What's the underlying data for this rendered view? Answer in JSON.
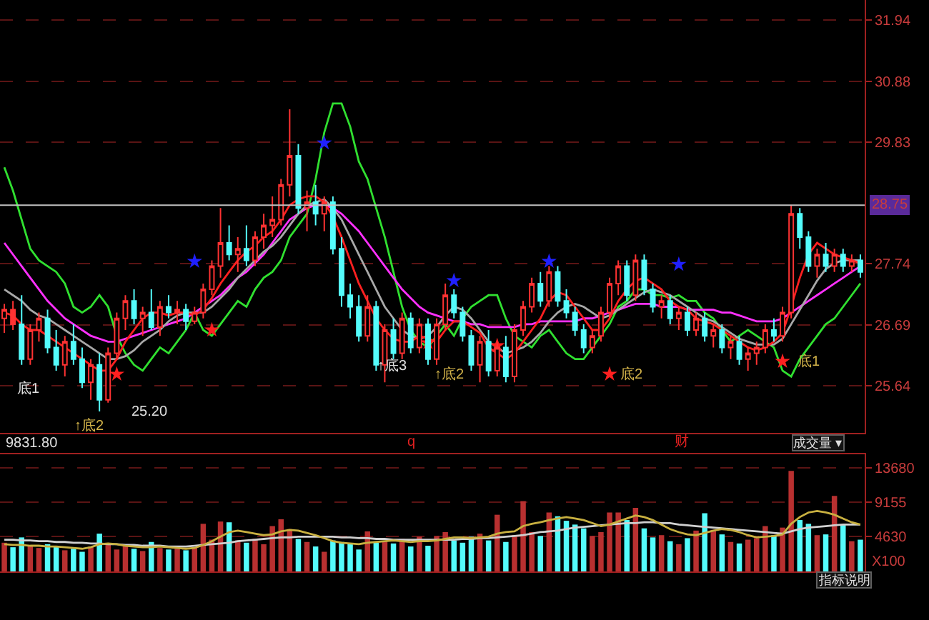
{
  "chart_data": [
    {
      "type": "candlestick",
      "categories": [
        null,
        null,
        null,
        null,
        null,
        null,
        null,
        null,
        null,
        null,
        null,
        null,
        null,
        null,
        null,
        null,
        null,
        null,
        null,
        null,
        null,
        null,
        null,
        null,
        null,
        null,
        null,
        null,
        null,
        null,
        null,
        null,
        null,
        null,
        null,
        null,
        null,
        null,
        null,
        null,
        null,
        null,
        null,
        null,
        null,
        null,
        null,
        null,
        null,
        null,
        null,
        null,
        null,
        null,
        null,
        null,
        null,
        null,
        null,
        null,
        null,
        null,
        null,
        null,
        null,
        null,
        null,
        null,
        null,
        null,
        null,
        null,
        null,
        null,
        null,
        null,
        null,
        null,
        null,
        null,
        null,
        null,
        null,
        null,
        null,
        null,
        null,
        null,
        null,
        null,
        null,
        null,
        null,
        null,
        null,
        null,
        null,
        null,
        null,
        null
      ],
      "ohlc": [
        [
          26.8,
          27.05,
          26.55,
          26.95
        ],
        [
          26.95,
          27.1,
          26.6,
          26.7
        ],
        [
          26.7,
          27.2,
          26.0,
          26.1
        ],
        [
          26.1,
          26.7,
          26.0,
          26.6
        ],
        [
          26.6,
          26.9,
          26.4,
          26.8
        ],
        [
          26.8,
          26.95,
          26.2,
          26.3
        ],
        [
          26.3,
          26.6,
          25.9,
          26.0
        ],
        [
          26.0,
          26.5,
          25.8,
          26.4
        ],
        [
          26.4,
          26.7,
          26.0,
          26.1
        ],
        [
          26.1,
          26.3,
          25.6,
          25.7
        ],
        [
          25.7,
          26.1,
          25.4,
          26.0
        ],
        [
          26.0,
          26.2,
          25.2,
          25.4
        ],
        [
          25.4,
          26.3,
          25.35,
          26.2
        ],
        [
          26.2,
          26.9,
          26.1,
          26.8
        ],
        [
          26.8,
          27.2,
          26.6,
          27.1
        ],
        [
          27.1,
          27.3,
          26.7,
          26.8
        ],
        [
          26.8,
          27.0,
          26.5,
          26.9
        ],
        [
          26.9,
          27.3,
          26.6,
          26.65
        ],
        [
          26.65,
          27.1,
          26.5,
          27.0
        ],
        [
          27.0,
          27.2,
          26.8,
          26.9
        ],
        [
          26.9,
          27.1,
          26.7,
          26.95
        ],
        [
          26.95,
          27.05,
          26.6,
          26.75
        ],
        [
          26.75,
          27.0,
          26.7,
          26.9
        ],
        [
          26.9,
          27.4,
          26.8,
          27.3
        ],
        [
          27.3,
          27.8,
          27.2,
          27.7
        ],
        [
          27.7,
          28.7,
          27.5,
          28.1
        ],
        [
          28.1,
          28.4,
          27.8,
          27.9
        ],
        [
          27.9,
          28.2,
          27.6,
          28.0
        ],
        [
          28.0,
          28.4,
          27.7,
          27.8
        ],
        [
          27.8,
          28.3,
          27.7,
          28.2
        ],
        [
          28.2,
          28.6,
          28.0,
          28.4
        ],
        [
          28.4,
          28.9,
          28.2,
          28.5
        ],
        [
          28.5,
          29.2,
          28.4,
          29.1
        ],
        [
          29.1,
          30.4,
          28.9,
          29.6
        ],
        [
          29.6,
          29.8,
          28.6,
          28.7
        ],
        [
          28.7,
          29.0,
          28.3,
          28.8
        ],
        [
          28.8,
          29.1,
          28.4,
          28.6
        ],
        [
          28.6,
          28.9,
          28.3,
          28.8
        ],
        [
          28.8,
          28.9,
          27.9,
          28.0
        ],
        [
          28.0,
          28.2,
          27.0,
          27.2
        ],
        [
          27.2,
          27.4,
          26.8,
          27.0
        ],
        [
          27.0,
          27.2,
          26.4,
          26.5
        ],
        [
          26.5,
          27.2,
          26.4,
          27.0
        ],
        [
          27.0,
          27.1,
          25.9,
          26.0
        ],
        [
          26.0,
          26.7,
          25.7,
          26.6
        ],
        [
          26.6,
          26.8,
          26.1,
          26.2
        ],
        [
          26.2,
          26.9,
          26.1,
          26.8
        ],
        [
          26.8,
          26.9,
          26.2,
          26.3
        ],
        [
          26.3,
          26.8,
          26.2,
          26.7
        ],
        [
          26.7,
          26.8,
          26.0,
          26.1
        ],
        [
          26.1,
          26.8,
          26.0,
          26.7
        ],
        [
          26.7,
          27.4,
          26.6,
          27.2
        ],
        [
          27.2,
          27.3,
          26.8,
          26.9
        ],
        [
          26.9,
          27.0,
          26.4,
          26.5
        ],
        [
          26.5,
          26.6,
          25.9,
          26.0
        ],
        [
          26.0,
          26.5,
          25.7,
          26.4
        ],
        [
          26.4,
          26.6,
          25.8,
          25.9
        ],
        [
          25.9,
          26.4,
          25.8,
          26.3
        ],
        [
          26.3,
          26.5,
          25.7,
          25.8
        ],
        [
          25.8,
          26.7,
          25.7,
          26.6
        ],
        [
          26.6,
          27.1,
          26.5,
          27.0
        ],
        [
          27.0,
          27.5,
          26.9,
          27.4
        ],
        [
          27.4,
          27.6,
          27.0,
          27.1
        ],
        [
          27.1,
          27.7,
          27.0,
          27.6
        ],
        [
          27.6,
          27.7,
          27.0,
          27.1
        ],
        [
          27.1,
          27.3,
          26.8,
          26.9
        ],
        [
          26.9,
          27.0,
          26.5,
          26.6
        ],
        [
          26.6,
          26.7,
          26.2,
          26.3
        ],
        [
          26.3,
          26.6,
          26.2,
          26.5
        ],
        [
          26.5,
          27.0,
          26.4,
          26.9
        ],
        [
          26.9,
          27.5,
          26.8,
          27.4
        ],
        [
          27.4,
          27.8,
          27.2,
          27.7
        ],
        [
          27.7,
          27.8,
          27.1,
          27.2
        ],
        [
          27.2,
          27.9,
          27.1,
          27.8
        ],
        [
          27.8,
          27.9,
          27.2,
          27.3
        ],
        [
          27.3,
          27.4,
          26.9,
          27.0
        ],
        [
          27.0,
          27.2,
          26.8,
          27.1
        ],
        [
          27.1,
          27.2,
          26.7,
          26.8
        ],
        [
          26.8,
          27.0,
          26.6,
          26.9
        ],
        [
          26.9,
          27.0,
          26.5,
          26.6
        ],
        [
          26.6,
          26.9,
          26.5,
          26.8
        ],
        [
          26.8,
          26.9,
          26.4,
          26.5
        ],
        [
          26.5,
          26.7,
          26.3,
          26.6
        ],
        [
          26.6,
          26.7,
          26.2,
          26.3
        ],
        [
          26.3,
          26.5,
          26.1,
          26.4
        ],
        [
          26.4,
          26.5,
          26.0,
          26.1
        ],
        [
          26.1,
          26.3,
          25.9,
          26.2
        ],
        [
          26.2,
          26.4,
          26.0,
          26.3
        ],
        [
          26.3,
          26.7,
          26.2,
          26.6
        ],
        [
          26.6,
          26.8,
          26.4,
          26.5
        ],
        [
          26.5,
          27.0,
          26.4,
          26.9
        ],
        [
          26.9,
          28.75,
          26.8,
          28.6
        ],
        [
          28.6,
          28.7,
          28.0,
          28.2
        ],
        [
          28.2,
          28.3,
          27.6,
          27.7
        ],
        [
          27.7,
          28.0,
          27.5,
          27.9
        ],
        [
          27.9,
          28.1,
          27.6,
          27.7
        ],
        [
          27.7,
          28.0,
          27.6,
          27.9
        ],
        [
          27.9,
          28.0,
          27.6,
          27.7
        ],
        [
          27.7,
          27.9,
          27.6,
          27.8
        ],
        [
          27.8,
          27.9,
          27.5,
          27.6
        ]
      ],
      "colors": [
        "#ff3232",
        "#ff3232",
        "#54fcfc",
        "#ff3232",
        "#ff3232",
        "#54fcfc",
        "#54fcfc",
        "#ff3232",
        "#54fcfc",
        "#54fcfc",
        "#ff3232",
        "#54fcfc",
        "#ff3232",
        "#ff3232",
        "#ff3232",
        "#54fcfc",
        "#ff3232",
        "#54fcfc",
        "#ff3232",
        "#54fcfc",
        "#ff3232",
        "#54fcfc",
        "#ff3232",
        "#ff3232",
        "#ff3232",
        "#ff3232",
        "#54fcfc",
        "#ff3232",
        "#54fcfc",
        "#ff3232",
        "#ff3232",
        "#ff3232",
        "#ff3232",
        "#ff3232",
        "#54fcfc",
        "#ff3232",
        "#54fcfc",
        "#ff3232",
        "#54fcfc",
        "#54fcfc",
        "#54fcfc",
        "#54fcfc",
        "#ff3232",
        "#54fcfc",
        "#ff3232",
        "#54fcfc",
        "#ff3232",
        "#54fcfc",
        "#ff3232",
        "#54fcfc",
        "#ff3232",
        "#ff3232",
        "#54fcfc",
        "#54fcfc",
        "#54fcfc",
        "#ff3232",
        "#54fcfc",
        "#ff3232",
        "#54fcfc",
        "#ff3232",
        "#ff3232",
        "#ff3232",
        "#54fcfc",
        "#ff3232",
        "#54fcfc",
        "#54fcfc",
        "#54fcfc",
        "#54fcfc",
        "#ff3232",
        "#ff3232",
        "#ff3232",
        "#ff3232",
        "#54fcfc",
        "#ff3232",
        "#54fcfc",
        "#54fcfc",
        "#ff3232",
        "#54fcfc",
        "#ff3232",
        "#54fcfc",
        "#ff3232",
        "#54fcfc",
        "#ff3232",
        "#54fcfc",
        "#ff3232",
        "#54fcfc",
        "#ff3232",
        "#ff3232",
        "#ff3232",
        "#54fcfc",
        "#ff3232",
        "#ff3232",
        "#54fcfc",
        "#54fcfc",
        "#ff3232",
        "#54fcfc",
        "#ff3232",
        "#54fcfc",
        "#ff3232",
        "#54fcfc"
      ],
      "series": [
        {
          "type": "line",
          "color": "#30e030",
          "values": [
            29.4,
            29.0,
            28.5,
            28.0,
            27.8,
            27.7,
            27.6,
            27.4,
            27.0,
            26.9,
            27.0,
            27.2,
            27.0,
            26.5,
            26.2,
            26.0,
            25.9,
            26.1,
            26.3,
            26.2,
            26.4,
            26.6,
            26.9,
            26.6,
            26.5,
            26.7,
            26.9,
            27.1,
            27.0,
            27.3,
            27.5,
            27.6,
            27.8,
            28.2,
            28.4,
            28.6,
            29.2,
            30.0,
            30.5,
            30.5,
            30.1,
            29.5,
            29.2,
            28.7,
            28.2,
            27.6,
            27.0,
            26.6,
            26.4,
            26.3,
            26.5,
            26.7,
            26.5,
            26.8,
            27.0,
            27.1,
            27.2,
            27.2,
            26.8,
            26.5,
            26.4,
            26.3,
            26.5,
            26.6,
            26.4,
            26.2,
            26.1,
            26.1,
            26.3,
            26.5,
            26.7,
            27.0,
            27.1,
            27.3,
            27.3,
            27.2,
            27.2,
            27.15,
            27.2,
            27.1,
            27.1,
            26.9,
            26.8,
            26.6,
            26.4,
            26.5,
            26.6,
            26.5,
            26.4,
            26.3,
            25.9,
            25.8,
            26.1,
            26.3,
            26.5,
            26.7,
            26.8,
            27.0,
            27.2,
            27.4
          ]
        },
        {
          "type": "line",
          "color": "#ff30ff",
          "values": [
            28.1,
            27.9,
            27.7,
            27.5,
            27.3,
            27.1,
            26.95,
            26.8,
            26.7,
            26.6,
            26.5,
            26.45,
            26.4,
            26.4,
            26.45,
            26.5,
            26.55,
            26.6,
            26.65,
            26.7,
            26.75,
            26.8,
            26.9,
            27.0,
            27.1,
            27.2,
            27.35,
            27.5,
            27.6,
            27.75,
            27.9,
            28.1,
            28.3,
            28.5,
            28.6,
            28.7,
            28.75,
            28.75,
            28.7,
            28.6,
            28.45,
            28.3,
            28.1,
            27.9,
            27.7,
            27.5,
            27.3,
            27.15,
            27.0,
            26.9,
            26.85,
            26.8,
            26.75,
            26.75,
            26.7,
            26.7,
            26.65,
            26.65,
            26.65,
            26.65,
            26.7,
            26.7,
            26.75,
            26.75,
            26.75,
            26.75,
            26.75,
            26.8,
            26.8,
            26.85,
            26.9,
            26.95,
            27.0,
            27.05,
            27.05,
            27.05,
            27.0,
            27.0,
            27.0,
            26.95,
            26.95,
            26.95,
            26.95,
            26.9,
            26.9,
            26.85,
            26.8,
            26.75,
            26.75,
            26.75,
            26.8,
            26.9,
            27.0,
            27.1,
            27.2,
            27.3,
            27.4,
            27.5,
            27.6,
            27.7
          ]
        },
        {
          "type": "line",
          "color": "#a8a8a8",
          "values": [
            27.3,
            27.2,
            27.1,
            26.95,
            26.85,
            26.8,
            26.7,
            26.6,
            26.5,
            26.4,
            26.3,
            26.2,
            26.1,
            26.1,
            26.15,
            26.25,
            26.4,
            26.5,
            26.6,
            26.75,
            26.85,
            26.9,
            26.9,
            26.9,
            27.0,
            27.15,
            27.3,
            27.5,
            27.65,
            27.8,
            27.95,
            28.05,
            28.2,
            28.4,
            28.6,
            28.75,
            28.8,
            28.85,
            28.7,
            28.5,
            28.2,
            27.9,
            27.6,
            27.3,
            27.0,
            26.8,
            26.6,
            26.5,
            26.45,
            26.5,
            26.65,
            26.85,
            27.0,
            26.95,
            26.8,
            26.6,
            26.4,
            26.3,
            26.2,
            26.25,
            26.3,
            26.4,
            26.55,
            26.75,
            26.9,
            27.0,
            27.05,
            27.0,
            26.9,
            26.8,
            26.85,
            26.95,
            27.05,
            27.15,
            27.25,
            27.3,
            27.25,
            27.2,
            27.1,
            27.0,
            26.9,
            26.8,
            26.75,
            26.65,
            26.55,
            26.45,
            26.4,
            26.35,
            26.35,
            26.35,
            26.45,
            26.7,
            26.95,
            27.2,
            27.45,
            27.65,
            27.75,
            27.8,
            27.8,
            27.8
          ]
        },
        {
          "type": "line",
          "color": "#ff2020",
          "values": [
            26.9,
            26.85,
            26.7,
            26.6,
            26.6,
            26.5,
            26.4,
            26.3,
            26.2,
            26.1,
            26.0,
            25.9,
            25.9,
            26.1,
            26.4,
            26.6,
            26.8,
            26.9,
            26.9,
            26.85,
            26.9,
            26.9,
            26.85,
            26.95,
            27.15,
            27.4,
            27.6,
            27.8,
            27.95,
            28.05,
            28.2,
            28.3,
            28.5,
            28.75,
            28.85,
            28.9,
            28.9,
            28.8,
            28.55,
            28.2,
            27.8,
            27.4,
            27.1,
            26.8,
            26.6,
            26.45,
            26.4,
            26.4,
            26.5,
            26.45,
            26.4,
            26.6,
            26.75,
            26.75,
            26.65,
            26.55,
            26.3,
            26.2,
            26.1,
            26.2,
            26.4,
            26.6,
            26.8,
            27.1,
            27.25,
            27.2,
            27.0,
            26.8,
            26.6,
            26.6,
            26.8,
            27.1,
            27.3,
            27.45,
            27.5,
            27.4,
            27.3,
            27.1,
            27.0,
            26.95,
            26.8,
            26.75,
            26.7,
            26.6,
            26.5,
            26.4,
            26.3,
            26.25,
            26.3,
            26.4,
            26.55,
            27.0,
            27.5,
            27.9,
            28.1,
            28.0,
            27.9,
            27.85,
            27.8,
            27.75
          ]
        },
        {
          "type": "scatter",
          "marker": "star",
          "color": "#2020ff",
          "values": [
            null,
            null,
            null,
            null,
            null,
            null,
            null,
            null,
            null,
            null,
            null,
            null,
            null,
            null,
            null,
            null,
            null,
            null,
            null,
            null,
            null,
            null,
            27.78,
            null,
            null,
            null,
            null,
            null,
            null,
            null,
            null,
            null,
            null,
            null,
            null,
            null,
            null,
            29.82,
            null,
            null,
            null,
            null,
            null,
            null,
            null,
            null,
            null,
            null,
            null,
            null,
            null,
            null,
            27.45,
            null,
            null,
            null,
            null,
            null,
            null,
            null,
            null,
            null,
            null,
            27.78,
            null,
            null,
            null,
            null,
            null,
            null,
            null,
            null,
            null,
            null,
            null,
            null,
            null,
            null,
            27.73,
            null,
            null,
            null,
            null,
            null,
            null,
            null,
            null,
            null,
            null,
            null,
            null,
            null,
            null,
            null,
            null,
            null,
            null,
            null,
            null,
            null
          ]
        },
        {
          "type": "scatter",
          "marker": "star",
          "color": "#ff2020",
          "values": [
            null,
            null,
            null,
            null,
            null,
            null,
            null,
            null,
            null,
            null,
            null,
            null,
            null,
            25.84,
            null,
            null,
            null,
            null,
            null,
            null,
            null,
            null,
            null,
            null,
            26.6,
            null,
            null,
            null,
            null,
            null,
            null,
            null,
            null,
            null,
            null,
            null,
            null,
            null,
            null,
            null,
            null,
            null,
            null,
            null,
            null,
            null,
            null,
            null,
            null,
            26.38,
            null,
            null,
            null,
            null,
            null,
            null,
            null,
            26.33,
            null,
            null,
            null,
            null,
            null,
            null,
            null,
            null,
            null,
            null,
            null,
            null,
            25.84,
            null,
            null,
            null,
            null,
            null,
            null,
            null,
            null,
            null,
            null,
            null,
            null,
            null,
            null,
            null,
            null,
            null,
            null,
            null,
            26.06,
            null,
            null,
            null,
            null,
            null,
            null,
            null,
            null,
            null
          ]
        }
      ],
      "ylim": [
        24.83,
        32.28
      ],
      "yticks": [
        25.64,
        26.69,
        27.74,
        29.83,
        30.88,
        31.94
      ],
      "grid": "y",
      "ref_lines": [
        {
          "axis": "y",
          "value": 28.75,
          "label": "28.75",
          "color": "#c0c0c0"
        }
      ],
      "annotations": [
        "底1",
        "↑底2",
        "25.20",
        "↑底3",
        "↑底2",
        "底2",
        "底1",
        "q",
        "财"
      ]
    },
    {
      "type": "bar",
      "categories": [
        null,
        null,
        null,
        null,
        null,
        null,
        null,
        null,
        null,
        null,
        null,
        null,
        null,
        null,
        null,
        null,
        null,
        null,
        null,
        null,
        null,
        null,
        null,
        null,
        null,
        null,
        null,
        null,
        null,
        null,
        null,
        null,
        null,
        null,
        null,
        null,
        null,
        null,
        null,
        null,
        null,
        null,
        null,
        null,
        null,
        null,
        null,
        null,
        null,
        null,
        null,
        null,
        null,
        null,
        null,
        null,
        null,
        null,
        null,
        null,
        null,
        null,
        null,
        null,
        null,
        null,
        null,
        null,
        null,
        null,
        null,
        null,
        null,
        null,
        null,
        null,
        null,
        null,
        null,
        null,
        null,
        null,
        null,
        null,
        null,
        null,
        null,
        null,
        null,
        null,
        null,
        null,
        null,
        null,
        null,
        null,
        null,
        null,
        null,
        null
      ],
      "series": [
        {
          "type": "bar",
          "values": [
            3800,
            3200,
            4500,
            3400,
            3100,
            3600,
            3300,
            2800,
            3000,
            2600,
            3300,
            5000,
            3500,
            2900,
            3400,
            3000,
            2700,
            3900,
            3100,
            2900,
            3000,
            2800,
            3200,
            6300,
            4200,
            6600,
            6500,
            4100,
            3800,
            4300,
            3600,
            6000,
            6900,
            5600,
            4300,
            3900,
            3300,
            2600,
            4100,
            3900,
            3600,
            2900,
            5300,
            3800,
            4000,
            3700,
            4300,
            3300,
            4600,
            3400,
            4700,
            5200,
            4100,
            3800,
            4600,
            5000,
            4100,
            7500,
            3900,
            4800,
            9300,
            5200,
            4700,
            7800,
            7300,
            6700,
            6200,
            5700,
            4700,
            5200,
            7800,
            7800,
            6800,
            8400,
            5700,
            4500,
            4800,
            4000,
            3600,
            4400,
            5400,
            7700,
            5500,
            4900,
            3900,
            3700,
            4200,
            4400,
            6000,
            4800,
            5800,
            13300,
            6800,
            6300,
            4800,
            4900,
            10000,
            6200,
            4000,
            4200
          ],
          "colors": [
            "#b83030",
            "#54fcfc",
            "#54fcfc",
            "#b83030",
            "#b83030",
            "#54fcfc",
            "#54fcfc",
            "#b83030",
            "#54fcfc",
            "#54fcfc",
            "#b83030",
            "#54fcfc",
            "#b83030",
            "#b83030",
            "#b83030",
            "#54fcfc",
            "#b83030",
            "#54fcfc",
            "#b83030",
            "#54fcfc",
            "#b83030",
            "#54fcfc",
            "#b83030",
            "#b83030",
            "#b83030",
            "#b83030",
            "#54fcfc",
            "#b83030",
            "#54fcfc",
            "#b83030",
            "#b83030",
            "#b83030",
            "#b83030",
            "#b83030",
            "#54fcfc",
            "#b83030",
            "#54fcfc",
            "#b83030",
            "#54fcfc",
            "#54fcfc",
            "#54fcfc",
            "#54fcfc",
            "#b83030",
            "#54fcfc",
            "#b83030",
            "#54fcfc",
            "#b83030",
            "#54fcfc",
            "#b83030",
            "#54fcfc",
            "#b83030",
            "#b83030",
            "#54fcfc",
            "#54fcfc",
            "#54fcfc",
            "#b83030",
            "#54fcfc",
            "#b83030",
            "#54fcfc",
            "#b83030",
            "#b83030",
            "#b83030",
            "#54fcfc",
            "#b83030",
            "#54fcfc",
            "#54fcfc",
            "#54fcfc",
            "#54fcfc",
            "#b83030",
            "#b83030",
            "#b83030",
            "#b83030",
            "#54fcfc",
            "#b83030",
            "#54fcfc",
            "#54fcfc",
            "#b83030",
            "#54fcfc",
            "#b83030",
            "#54fcfc",
            "#b83030",
            "#54fcfc",
            "#b83030",
            "#54fcfc",
            "#b83030",
            "#54fcfc",
            "#b83030",
            "#b83030",
            "#b83030",
            "#54fcfc",
            "#b83030",
            "#b83030",
            "#54fcfc",
            "#54fcfc",
            "#b83030",
            "#54fcfc",
            "#b83030",
            "#54fcfc",
            "#b83030",
            "#54fcfc"
          ]
        },
        {
          "type": "line",
          "color": "#d0d0d0",
          "values": [
            4200,
            4200,
            4100,
            4100,
            4000,
            4000,
            3900,
            3900,
            3800,
            3800,
            3700,
            3700,
            3600,
            3600,
            3500,
            3500,
            3400,
            3400,
            3400,
            3300,
            3300,
            3300,
            3400,
            3500,
            3600,
            3700,
            3800,
            4000,
            4100,
            4200,
            4300,
            4400,
            4500,
            4500,
            4600,
            4600,
            4600,
            4600,
            4600,
            4500,
            4500,
            4400,
            4400,
            4300,
            4300,
            4200,
            4200,
            4200,
            4200,
            4200,
            4200,
            4200,
            4200,
            4300,
            4300,
            4400,
            4400,
            4500,
            4600,
            4700,
            4800,
            5000,
            5200,
            5300,
            5400,
            5600,
            5800,
            5900,
            6000,
            6100,
            6200,
            6300,
            6400,
            6400,
            6500,
            6500,
            6400,
            6400,
            6200,
            6100,
            6000,
            5900,
            5800,
            5700,
            5600,
            5500,
            5400,
            5300,
            5200,
            5100,
            5000,
            5300,
            5600,
            5800,
            5900,
            6000,
            6100,
            6200,
            6200,
            6200
          ]
        },
        {
          "type": "line",
          "color": "#c8b040",
          "values": [
            3600,
            3500,
            3500,
            3400,
            3400,
            3300,
            3300,
            3200,
            3100,
            3000,
            3200,
            3600,
            3700,
            3600,
            3400,
            3300,
            3200,
            3200,
            3300,
            3200,
            3100,
            3000,
            3100,
            3500,
            4000,
            4600,
            5200,
            5400,
            5200,
            5000,
            4800,
            4900,
            5300,
            5500,
            5400,
            5100,
            4800,
            4400,
            4000,
            3800,
            3700,
            3600,
            3800,
            3900,
            4000,
            4100,
            4000,
            3900,
            4000,
            4000,
            4100,
            4300,
            4500,
            4500,
            4400,
            4500,
            4600,
            5000,
            5200,
            5300,
            6000,
            6300,
            6500,
            6800,
            7000,
            7200,
            7000,
            6800,
            6400,
            6000,
            6200,
            6600,
            7000,
            7400,
            7200,
            6800,
            6200,
            5600,
            5200,
            4900,
            4800,
            5100,
            5400,
            5600,
            5500,
            5200,
            4800,
            4500,
            4600,
            4700,
            4900,
            6300,
            7200,
            7800,
            8000,
            7800,
            7500,
            7000,
            6500,
            6200
          ]
        }
      ],
      "ylim": [
        0,
        15500
      ],
      "yticks": [
        4630,
        9155,
        13680
      ],
      "grid": "y",
      "annotations": [
        "9831.80",
        "成交量 ▾",
        "X100",
        "指标说明"
      ]
    }
  ]
}
